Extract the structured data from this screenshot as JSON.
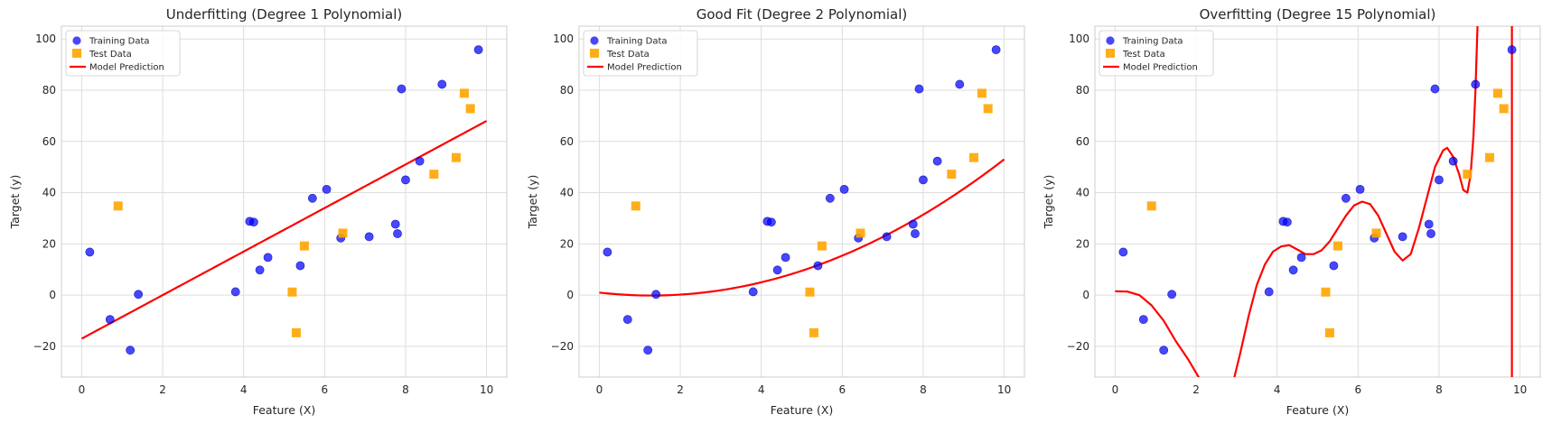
{
  "chart_data": [
    {
      "type": "scatter",
      "title": "Underfitting (Degree 1 Polynomial)",
      "xlabel": "Feature (X)",
      "ylabel": "Target (y)",
      "xlim": [
        -0.5,
        10.5
      ],
      "ylim": [
        -32,
        105
      ],
      "xticks": [
        "0",
        "2",
        "4",
        "6",
        "8",
        "10"
      ],
      "yticks": [
        "-20",
        "0",
        "20",
        "40",
        "60",
        "80",
        "100"
      ],
      "grid": true,
      "legend": "top-left",
      "model": {
        "name": "Model Prediction",
        "degree": 1,
        "coefficients": [
          -17.0,
          8.5
        ]
      },
      "series": [
        {
          "name": "Training Data",
          "marker": "circle",
          "color": "#0000ff",
          "points": [
            [
              0.2,
              16.8
            ],
            [
              0.7,
              -9.5
            ],
            [
              1.2,
              -21.5
            ],
            [
              1.4,
              0.3
            ],
            [
              3.8,
              1.3
            ],
            [
              4.15,
              28.8
            ],
            [
              4.25,
              28.5
            ],
            [
              4.4,
              9.8
            ],
            [
              4.6,
              14.7
            ],
            [
              5.4,
              11.5
            ],
            [
              5.7,
              37.8
            ],
            [
              6.05,
              41.3
            ],
            [
              6.4,
              22.3
            ],
            [
              7.1,
              22.8
            ],
            [
              7.75,
              27.7
            ],
            [
              7.8,
              24.0
            ],
            [
              7.9,
              80.5
            ],
            [
              8.0,
              45.0
            ],
            [
              8.35,
              52.3
            ],
            [
              8.9,
              82.3
            ],
            [
              9.8,
              95.8
            ]
          ]
        },
        {
          "name": "Test Data",
          "marker": "square",
          "color": "#ffa500",
          "points": [
            [
              0.9,
              34.8
            ],
            [
              5.2,
              1.2
            ],
            [
              5.3,
              -14.7
            ],
            [
              5.5,
              19.2
            ],
            [
              6.45,
              24.2
            ],
            [
              8.7,
              47.2
            ],
            [
              9.25,
              53.7
            ],
            [
              9.45,
              78.8
            ],
            [
              9.6,
              72.8
            ]
          ]
        }
      ]
    },
    {
      "type": "scatter",
      "title": "Good Fit (Degree 2 Polynomial)",
      "xlabel": "Feature (X)",
      "ylabel": "Target (y)",
      "xlim": [
        -0.5,
        10.5
      ],
      "ylim": [
        -32,
        105
      ],
      "xticks": [
        "0",
        "2",
        "4",
        "6",
        "8",
        "10"
      ],
      "yticks": [
        "-20",
        "0",
        "20",
        "40",
        "60",
        "80",
        "100"
      ],
      "grid": true,
      "legend": "top-left",
      "model": {
        "name": "Model Prediction",
        "degree": 2,
        "coefficients": [
          1.0,
          -1.8,
          0.7
        ]
      },
      "series": [
        {
          "name": "Training Data",
          "marker": "circle",
          "color": "#0000ff",
          "points": [
            [
              0.2,
              16.8
            ],
            [
              0.7,
              -9.5
            ],
            [
              1.2,
              -21.5
            ],
            [
              1.4,
              0.3
            ],
            [
              3.8,
              1.3
            ],
            [
              4.15,
              28.8
            ],
            [
              4.25,
              28.5
            ],
            [
              4.4,
              9.8
            ],
            [
              4.6,
              14.7
            ],
            [
              5.4,
              11.5
            ],
            [
              5.7,
              37.8
            ],
            [
              6.05,
              41.3
            ],
            [
              6.4,
              22.3
            ],
            [
              7.1,
              22.8
            ],
            [
              7.75,
              27.7
            ],
            [
              7.8,
              24.0
            ],
            [
              7.9,
              80.5
            ],
            [
              8.0,
              45.0
            ],
            [
              8.35,
              52.3
            ],
            [
              8.9,
              82.3
            ],
            [
              9.8,
              95.8
            ]
          ]
        },
        {
          "name": "Test Data",
          "marker": "square",
          "color": "#ffa500",
          "points": [
            [
              0.9,
              34.8
            ],
            [
              5.2,
              1.2
            ],
            [
              5.3,
              -14.7
            ],
            [
              5.5,
              19.2
            ],
            [
              6.45,
              24.2
            ],
            [
              8.7,
              47.2
            ],
            [
              9.25,
              53.7
            ],
            [
              9.45,
              78.8
            ],
            [
              9.6,
              72.8
            ]
          ]
        }
      ]
    },
    {
      "type": "scatter",
      "title": "Overfitting (Degree 15 Polynomial)",
      "xlabel": "Feature (X)",
      "ylabel": "Target (y)",
      "xlim": [
        -0.5,
        10.5
      ],
      "ylim": [
        -32,
        105
      ],
      "xticks": [
        "0",
        "2",
        "4",
        "6",
        "8",
        "10"
      ],
      "yticks": [
        "-20",
        "0",
        "20",
        "40",
        "60",
        "80",
        "100"
      ],
      "grid": true,
      "legend": "top-left",
      "model": {
        "name": "Model Prediction",
        "degree": 15,
        "curve": [
          [
            0,
            1.5
          ],
          [
            0.3,
            1.4
          ],
          [
            0.6,
            0
          ],
          [
            0.9,
            -4
          ],
          [
            1.2,
            -10
          ],
          [
            1.5,
            -18
          ],
          [
            1.8,
            -25
          ],
          [
            2.1,
            -33
          ],
          [
            2.4,
            -42
          ],
          [
            2.7,
            -45
          ],
          [
            2.9,
            -35
          ],
          [
            3.1,
            -22
          ],
          [
            3.3,
            -8
          ],
          [
            3.5,
            4
          ],
          [
            3.7,
            12
          ],
          [
            3.9,
            17
          ],
          [
            4.1,
            19
          ],
          [
            4.3,
            19.5
          ],
          [
            4.5,
            17.8
          ],
          [
            4.7,
            16
          ],
          [
            4.9,
            16
          ],
          [
            5.1,
            17.5
          ],
          [
            5.3,
            21
          ],
          [
            5.5,
            26
          ],
          [
            5.7,
            31
          ],
          [
            5.9,
            35
          ],
          [
            6.1,
            36.5
          ],
          [
            6.3,
            35.5
          ],
          [
            6.5,
            31
          ],
          [
            6.7,
            24
          ],
          [
            6.9,
            17
          ],
          [
            7.1,
            13.5
          ],
          [
            7.3,
            16
          ],
          [
            7.5,
            26
          ],
          [
            7.7,
            38
          ],
          [
            7.9,
            50
          ],
          [
            8.1,
            56.5
          ],
          [
            8.2,
            57.5
          ],
          [
            8.35,
            54
          ],
          [
            8.5,
            47
          ],
          [
            8.6,
            41
          ],
          [
            8.7,
            40
          ],
          [
            8.78,
            47
          ],
          [
            8.85,
            62
          ],
          [
            8.9,
            80
          ],
          [
            8.95,
            105
          ],
          [
            9.0,
            140
          ]
        ]
      },
      "model_tail": [
        [
          9.8,
          -50
        ],
        [
          9.8,
          110
        ]
      ],
      "series": [
        {
          "name": "Training Data",
          "marker": "circle",
          "color": "#0000ff",
          "points": [
            [
              0.2,
              16.8
            ],
            [
              0.7,
              -9.5
            ],
            [
              1.2,
              -21.5
            ],
            [
              1.4,
              0.3
            ],
            [
              3.8,
              1.3
            ],
            [
              4.15,
              28.8
            ],
            [
              4.25,
              28.5
            ],
            [
              4.4,
              9.8
            ],
            [
              4.6,
              14.7
            ],
            [
              5.4,
              11.5
            ],
            [
              5.7,
              37.8
            ],
            [
              6.05,
              41.3
            ],
            [
              6.4,
              22.3
            ],
            [
              7.1,
              22.8
            ],
            [
              7.75,
              27.7
            ],
            [
              7.8,
              24.0
            ],
            [
              7.9,
              80.5
            ],
            [
              8.0,
              45.0
            ],
            [
              8.35,
              52.3
            ],
            [
              8.9,
              82.3
            ],
            [
              9.8,
              95.8
            ]
          ]
        },
        {
          "name": "Test Data",
          "marker": "square",
          "color": "#ffa500",
          "points": [
            [
              0.9,
              34.8
            ],
            [
              5.2,
              1.2
            ],
            [
              5.3,
              -14.7
            ],
            [
              5.5,
              19.2
            ],
            [
              6.45,
              24.2
            ],
            [
              8.7,
              47.2
            ],
            [
              9.25,
              53.7
            ],
            [
              9.45,
              78.8
            ],
            [
              9.6,
              72.8
            ]
          ]
        }
      ]
    }
  ],
  "colors": {
    "training": "#0000ff",
    "test": "#ffa500",
    "model": "#ff0000",
    "grid": "#dddddd",
    "frame": "#cccccc"
  }
}
